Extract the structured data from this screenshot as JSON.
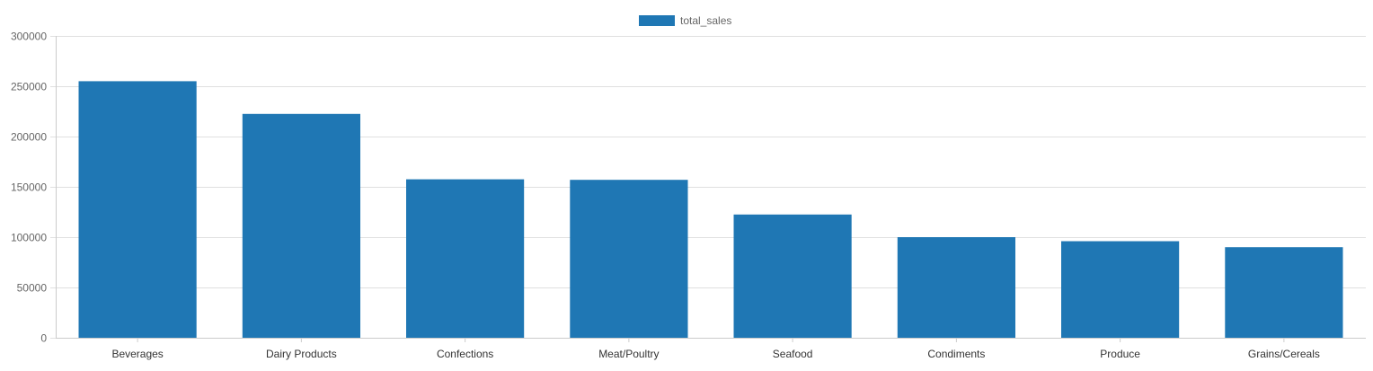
{
  "colors": {
    "bar": "#1f77b4",
    "grid": "#e0e0e0",
    "axis": "#cccccc"
  },
  "chart_data": {
    "type": "bar",
    "categories": [
      "Beverages",
      "Dairy Products",
      "Confections",
      "Meat/Poultry",
      "Seafood",
      "Condiments",
      "Produce",
      "Grains/Cereals"
    ],
    "series": [
      {
        "name": "total_sales",
        "values": [
          255000,
          222500,
          157500,
          157000,
          122500,
          100000,
          96000,
          90000
        ]
      }
    ],
    "ylim": [
      0,
      300000
    ],
    "yticks": [
      0,
      50000,
      100000,
      150000,
      200000,
      250000,
      300000
    ],
    "grid": true,
    "legend": "top-center"
  }
}
